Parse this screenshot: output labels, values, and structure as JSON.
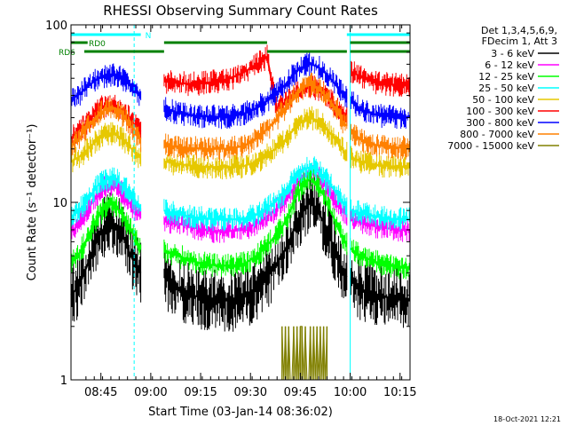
{
  "chart_data": {
    "type": "line",
    "title": "RHESSI Observing Summary Count Rates",
    "xlabel": "Start Time (03-Jan-14 08:36:02)",
    "ylabel": "Count Rate (s⁻¹ detector⁻¹)",
    "x_unit": "minutes after 08:36:02",
    "xlim": [
      0,
      102
    ],
    "ylim": [
      1,
      100
    ],
    "yscale": "log",
    "x_tick_labels": [
      "08:45",
      "09:00",
      "09:15",
      "09:30",
      "09:45",
      "10:00",
      "10:15"
    ],
    "x_tick_positions": [
      9,
      24,
      39,
      54,
      69,
      84,
      99
    ],
    "y_tick_labels": [
      "1",
      "10",
      "100"
    ],
    "y_tick_values": [
      1,
      10,
      100
    ],
    "legend": {
      "placement": "top-right",
      "header": [
        "Det 1,3,4,5,6,9,",
        "FDecim 1, Att 3"
      ]
    },
    "flags": [
      {
        "name": "N",
        "color": "#00ffff",
        "segments": [
          [
            0,
            21
          ],
          [
            83,
            102
          ]
        ]
      },
      {
        "name": "RD0",
        "color": "#008000",
        "segments": [
          [
            0,
            5
          ],
          [
            28,
            59
          ],
          [
            84,
            102
          ]
        ]
      },
      {
        "name": "RD6",
        "color": "#008000",
        "segments": [
          [
            4,
            28
          ],
          [
            59,
            83
          ],
          [
            84,
            102
          ]
        ]
      }
    ],
    "vlines": [
      {
        "x": 0,
        "color": "#00ffff",
        "style": "solid"
      },
      {
        "x": 19,
        "color": "#00ffff",
        "style": "dashed"
      },
      {
        "x": 84,
        "color": "#00ffff",
        "style": "solid"
      },
      {
        "x": 102,
        "color": "#00ffff",
        "style": "dashed"
      }
    ],
    "gaps": [
      [
        21,
        28
      ],
      [
        83,
        84
      ]
    ],
    "series": [
      {
        "name": "3 - 6 keV",
        "color": "#000000",
        "x": [
          0,
          2,
          4,
          6,
          8,
          10,
          12,
          14,
          16,
          18,
          20,
          21,
          28,
          32,
          36,
          40,
          44,
          48,
          52,
          56,
          60,
          64,
          66,
          68,
          70,
          72,
          74,
          76,
          78,
          80,
          82,
          83,
          84,
          88,
          92,
          96,
          100,
          102
        ],
        "y": [
          3.0,
          3.3,
          4.0,
          5.0,
          6.2,
          7.2,
          7.8,
          7.2,
          6.2,
          5.0,
          4.2,
          4.0,
          3.8,
          3.3,
          3.0,
          2.9,
          2.8,
          2.8,
          2.9,
          3.3,
          4.0,
          5.2,
          6.3,
          7.8,
          9.0,
          10.0,
          9.0,
          7.8,
          6.3,
          5.0,
          4.0,
          3.8,
          3.6,
          3.2,
          3.0,
          2.9,
          2.8,
          2.8
        ]
      },
      {
        "name": "6 - 12 keV",
        "color": "#ff00ff",
        "x": [
          0,
          2,
          4,
          6,
          8,
          10,
          12,
          14,
          16,
          18,
          20,
          21,
          28,
          32,
          36,
          40,
          44,
          48,
          52,
          56,
          60,
          64,
          66,
          68,
          70,
          72,
          74,
          76,
          78,
          80,
          82,
          83,
          84,
          88,
          92,
          96,
          100,
          102
        ],
        "y": [
          6.8,
          7.4,
          8.6,
          9.8,
          11.0,
          12.0,
          12.5,
          12.0,
          11.0,
          9.8,
          8.8,
          8.5,
          8.0,
          7.6,
          7.3,
          7.0,
          6.9,
          6.9,
          7.0,
          7.6,
          8.6,
          10.0,
          11.3,
          12.8,
          14.0,
          14.6,
          14.0,
          12.8,
          11.3,
          10.0,
          8.8,
          8.5,
          8.2,
          7.6,
          7.3,
          7.1,
          7.0,
          7.0
        ]
      },
      {
        "name": "12 - 25 keV",
        "color": "#00ff00",
        "x": [
          0,
          2,
          4,
          6,
          8,
          10,
          12,
          14,
          16,
          18,
          20,
          21,
          28,
          32,
          36,
          40,
          44,
          48,
          52,
          56,
          60,
          64,
          66,
          68,
          70,
          72,
          74,
          76,
          78,
          80,
          82,
          83,
          84,
          88,
          92,
          96,
          100,
          102
        ],
        "y": [
          4.5,
          5.0,
          5.8,
          7.0,
          8.2,
          9.2,
          9.8,
          9.2,
          8.2,
          7.0,
          5.9,
          5.7,
          5.4,
          5.0,
          4.7,
          4.5,
          4.4,
          4.4,
          4.5,
          5.0,
          6.0,
          7.5,
          9.0,
          11.0,
          12.8,
          13.6,
          12.8,
          11.0,
          9.0,
          7.5,
          6.0,
          5.8,
          5.5,
          4.9,
          4.6,
          4.4,
          4.3,
          4.3
        ]
      },
      {
        "name": "25 - 50 keV",
        "color": "#00ffff",
        "x": [
          0,
          2,
          4,
          6,
          8,
          10,
          12,
          14,
          16,
          18,
          20,
          21,
          28,
          32,
          36,
          40,
          44,
          48,
          52,
          56,
          60,
          64,
          66,
          68,
          70,
          72,
          74,
          76,
          78,
          80,
          82,
          83,
          84,
          88,
          92,
          96,
          100,
          102
        ],
        "y": [
          8.3,
          8.8,
          9.8,
          11.0,
          12.4,
          13.2,
          13.8,
          13.2,
          12.2,
          11.0,
          9.8,
          9.5,
          9.0,
          8.6,
          8.3,
          8.1,
          8.0,
          8.0,
          8.1,
          8.6,
          9.6,
          11.2,
          12.6,
          14.0,
          15.3,
          15.8,
          15.3,
          14.0,
          12.6,
          11.2,
          9.8,
          9.5,
          9.1,
          8.6,
          8.3,
          8.1,
          8.0,
          8.0
        ]
      },
      {
        "name": "50 - 100 keV",
        "color": "#e6c800",
        "x": [
          0,
          2,
          4,
          6,
          8,
          10,
          12,
          14,
          16,
          18,
          20,
          21,
          28,
          32,
          36,
          40,
          44,
          48,
          52,
          56,
          60,
          64,
          66,
          68,
          70,
          72,
          74,
          76,
          78,
          80,
          82,
          83,
          84,
          88,
          92,
          96,
          100,
          102
        ],
        "y": [
          17.0,
          17.8,
          19.0,
          20.8,
          22.5,
          23.8,
          24.5,
          23.8,
          22.2,
          20.2,
          18.3,
          17.8,
          17.0,
          16.5,
          16.1,
          15.9,
          15.8,
          15.8,
          16.0,
          17.0,
          19.0,
          22.0,
          24.5,
          27.0,
          29.0,
          30.0,
          29.0,
          27.0,
          24.5,
          22.0,
          19.5,
          19.0,
          18.0,
          16.8,
          16.3,
          16.0,
          15.9,
          15.9
        ]
      },
      {
        "name": "100 - 300 keV",
        "color": "#ff0000",
        "x": [
          0,
          2,
          4,
          6,
          8,
          10,
          12,
          14,
          16,
          18,
          20,
          21,
          28,
          32,
          36,
          40,
          44,
          48,
          52,
          56,
          59,
          62,
          64,
          66,
          68,
          70,
          72,
          74,
          76,
          78,
          80,
          82,
          83,
          84,
          88,
          92,
          96,
          100,
          102
        ],
        "y": [
          23.0,
          24.5,
          27.0,
          30.0,
          33.0,
          35.0,
          36.0,
          35.0,
          32.5,
          29.0,
          26.0,
          25.0,
          48.0,
          47.0,
          46.5,
          47.0,
          48.0,
          50.0,
          54.0,
          60.0,
          66.0,
          33.0,
          36.0,
          39.5,
          42.0,
          44.0,
          44.5,
          44.0,
          42.0,
          38.0,
          34.0,
          31.0,
          30.0,
          55.0,
          50.0,
          47.0,
          46.0,
          46.0,
          46.0
        ]
      },
      {
        "name": "300 - 800 keV",
        "color": "#0000ff",
        "x": [
          0,
          2,
          4,
          6,
          8,
          10,
          12,
          14,
          16,
          18,
          20,
          21,
          28,
          32,
          36,
          40,
          44,
          48,
          52,
          56,
          60,
          64,
          66,
          68,
          70,
          72,
          74,
          76,
          78,
          80,
          82,
          83,
          84,
          88,
          92,
          96,
          100,
          102
        ],
        "y": [
          38.0,
          40.0,
          43.0,
          46.5,
          49.5,
          51.5,
          52.5,
          51.5,
          49.0,
          45.0,
          41.0,
          40.0,
          34.0,
          32.0,
          31.0,
          30.5,
          30.3,
          30.5,
          31.5,
          34.0,
          38.5,
          45.0,
          50.0,
          55.0,
          58.5,
          60.0,
          58.5,
          55.0,
          50.0,
          45.0,
          40.0,
          38.5,
          37.0,
          33.0,
          31.0,
          30.5,
          30.3,
          30.3
        ]
      },
      {
        "name": "800 - 7000 keV",
        "color": "#ff8000",
        "x": [
          0,
          2,
          4,
          6,
          8,
          10,
          12,
          14,
          16,
          18,
          20,
          21,
          28,
          32,
          36,
          40,
          44,
          48,
          52,
          56,
          60,
          64,
          66,
          68,
          70,
          72,
          74,
          76,
          78,
          80,
          82,
          83,
          84,
          88,
          92,
          96,
          100,
          102
        ],
        "y": [
          21.0,
          22.5,
          25.0,
          28.0,
          31.0,
          33.0,
          34.0,
          33.0,
          30.5,
          27.0,
          23.5,
          22.5,
          21.0,
          20.5,
          20.2,
          20.0,
          20.0,
          20.1,
          20.8,
          23.0,
          27.0,
          33.0,
          37.0,
          41.0,
          44.5,
          46.0,
          44.5,
          41.0,
          37.0,
          33.0,
          28.0,
          27.0,
          25.5,
          22.0,
          21.0,
          20.5,
          20.3,
          20.3
        ]
      },
      {
        "name": "7000 - 15000 keV",
        "color": "#808000",
        "x": [
          63.5,
          64.0,
          64.5,
          65.0,
          65.5,
          66.0,
          66.5,
          67.0,
          67.5,
          68.0,
          68.5,
          69.0,
          69.5,
          70.0,
          70.5,
          71.0,
          71.5,
          72.0,
          72.5,
          73.0,
          73.5,
          74.0,
          74.5,
          75.0,
          75.5,
          76.0,
          76.5,
          77.0
        ],
        "y": [
          2.0,
          1.0,
          2.0,
          1.0,
          2.0,
          1.0,
          1.0,
          2.0,
          1.0,
          2.0,
          1.0,
          2.0,
          2.0,
          1.0,
          2.0,
          1.0,
          1.0,
          2.0,
          1.0,
          2.0,
          1.0,
          2.0,
          1.0,
          2.0,
          1.0,
          2.0,
          1.0,
          2.0
        ]
      }
    ]
  },
  "footer": {
    "timestamp": "18-Oct-2021 12:21"
  }
}
